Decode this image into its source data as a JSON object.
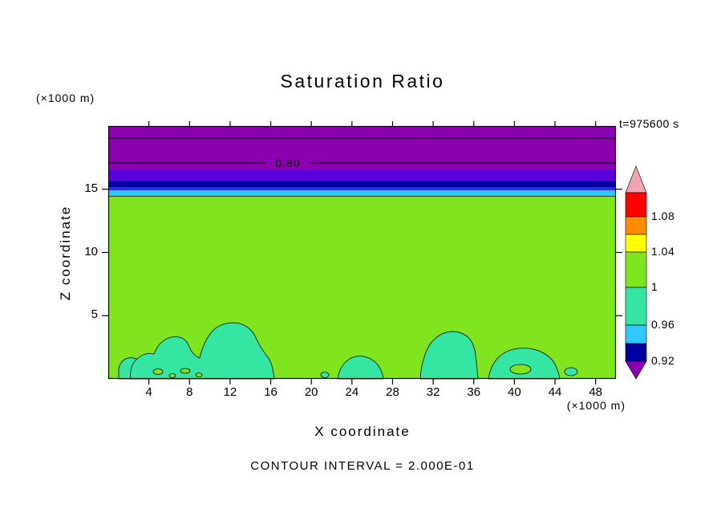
{
  "title": "Saturation Ratio",
  "timestamp": "t=975600 s",
  "contour_label": "0.80",
  "footer": "CONTOUR INTERVAL = 2.000E-01",
  "axes": {
    "x": {
      "label": "X coordinate",
      "unit": "(×1000 m)"
    },
    "y": {
      "label": "Z coordinate",
      "unit": "(×1000 m)"
    }
  },
  "colors": {
    "field": "#80E51E",
    "blob": "#35E6A2",
    "band_purple": "#8A00B0",
    "band_violet": "#5A00DC",
    "band_navy": "#0000A0",
    "band_blue": "#2030E8",
    "band_cyan": "#2FC8FF",
    "frame": "#000000"
  },
  "colorbar": {
    "labels": [
      "1.08",
      "1.04",
      "1",
      "0.96",
      "0.92"
    ],
    "segment_colors": [
      "#F2A4B4",
      "#FF0000",
      "#FF8C00",
      "#FFFF00",
      "#80E51E",
      "#35E6A2",
      "#2FC8FF",
      "#0000A0",
      "#8A00B0"
    ]
  },
  "chart_data": {
    "type": "heatmap",
    "title": "Saturation Ratio",
    "xlabel": "X coordinate",
    "ylabel": "Z coordinate",
    "x_unit": "×1000 m",
    "y_unit": "×1000 m",
    "xlim": [
      0,
      50
    ],
    "ylim": [
      0,
      20
    ],
    "xticks": [
      4,
      8,
      12,
      16,
      20,
      24,
      28,
      32,
      36,
      40,
      44,
      48
    ],
    "yticks": [
      5,
      10,
      15
    ],
    "time_label": "t=975600 s",
    "contour_interval": 0.2,
    "labeled_contour_value": 0.8,
    "colorbar_tick_values": [
      1.08,
      1.04,
      1,
      0.96,
      0.92
    ],
    "legend_position": "right",
    "grid": false,
    "shaded_bands_top_to_bottom": [
      {
        "z_range_km": [
          16.2,
          20
        ],
        "color_name": "purple",
        "note": "contains labeled 0.80 contour line at z≈17.1"
      },
      {
        "z_range_km": [
          15.4,
          16.2
        ],
        "color_name": "violet"
      },
      {
        "z_range_km": [
          15.0,
          15.4
        ],
        "color_name": "navy"
      },
      {
        "z_range_km": [
          14.8,
          15.0
        ],
        "color_name": "blue"
      },
      {
        "z_range_km": [
          14.4,
          14.8
        ],
        "color_name": "cyan"
      },
      {
        "z_range_km": [
          0,
          14.4
        ],
        "color_name": "yellow-green",
        "note": "saturation ratio ≈ 1 over most of domain"
      }
    ],
    "surface_blobs": {
      "color_name": "spring-green",
      "x_ranges_km": [
        [
          1.0,
          3.7
        ],
        [
          2.2,
          16.3
        ],
        [
          21.3,
          27.1
        ],
        [
          30.7,
          36.4
        ],
        [
          37.4,
          44.5
        ],
        [
          44.9,
          46.2
        ]
      ],
      "max_height_km": 4.4
    }
  }
}
